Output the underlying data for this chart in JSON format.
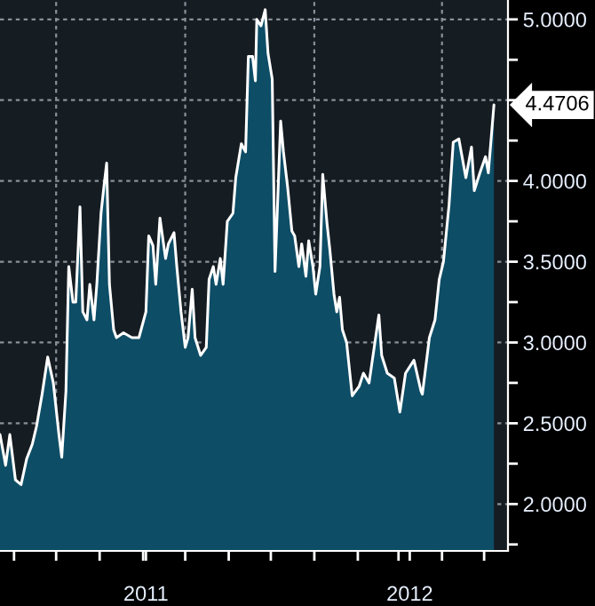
{
  "chart_data": {
    "type": "area",
    "x": [
      "2011-05-22",
      "2011-05-26",
      "2011-05-29",
      "2011-06-02",
      "2011-06-06",
      "2011-06-10",
      "2011-06-14",
      "2011-06-17",
      "2011-06-21",
      "2011-06-25",
      "2011-06-29",
      "2011-07-03",
      "2011-07-05",
      "2011-07-08",
      "2011-07-10",
      "2011-07-13",
      "2011-07-15",
      "2011-07-18",
      "2011-07-20",
      "2011-07-23",
      "2011-07-25",
      "2011-07-28",
      "2011-07-30",
      "2011-08-02",
      "2011-08-04",
      "2011-08-06",
      "2011-08-08",
      "2011-08-11",
      "2011-08-13",
      "2011-08-18",
      "2011-08-24",
      "2011-08-29",
      "2011-09-03",
      "2011-09-05",
      "2011-09-08",
      "2011-09-10",
      "2011-09-13",
      "2011-09-17",
      "2011-09-19",
      "2011-09-23",
      "2011-09-25",
      "2011-09-28",
      "2011-10-01",
      "2011-10-03",
      "2011-10-06",
      "2011-10-08",
      "2011-10-12",
      "2011-10-16",
      "2011-10-18",
      "2011-10-21",
      "2011-10-23",
      "2011-10-26",
      "2011-10-28",
      "2011-10-31",
      "2011-11-04",
      "2011-11-06",
      "2011-11-10",
      "2011-11-13",
      "2011-11-15",
      "2011-11-18",
      "2011-11-20",
      "2011-11-21",
      "2011-11-24",
      "2011-11-27",
      "2011-11-29",
      "2011-12-02",
      "2011-12-04",
      "2011-12-08",
      "2011-12-10",
      "2011-12-13",
      "2011-12-16",
      "2011-12-18",
      "2011-12-21",
      "2011-12-23",
      "2011-12-26",
      "2011-12-28",
      "2011-12-31",
      "2012-01-02",
      "2012-01-05",
      "2012-01-07",
      "2012-01-10",
      "2012-01-12",
      "2012-01-15",
      "2012-01-17",
      "2012-01-19",
      "2012-01-21",
      "2012-01-24",
      "2012-01-28",
      "2012-02-02",
      "2012-02-05",
      "2012-02-09",
      "2012-02-16",
      "2012-02-18",
      "2012-02-22",
      "2012-02-27",
      "2012-03-02",
      "2012-03-06",
      "2012-03-12",
      "2012-03-17",
      "2012-03-18",
      "2012-03-23",
      "2012-03-27",
      "2012-03-30",
      "2012-04-02",
      "2012-04-06",
      "2012-04-09",
      "2012-04-13",
      "2012-04-18",
      "2012-04-22",
      "2012-04-24",
      "2012-04-28",
      "2012-05-02",
      "2012-05-04",
      "2012-05-08"
    ],
    "series": [
      {
        "color": "#0e4d66",
        "values": [
          2.43,
          2.24,
          2.43,
          2.15,
          2.12,
          2.28,
          2.37,
          2.48,
          2.68,
          2.91,
          2.75,
          2.43,
          2.29,
          2.7,
          3.47,
          3.25,
          3.25,
          3.84,
          3.19,
          3.14,
          3.36,
          3.14,
          3.36,
          3.8,
          3.96,
          4.11,
          3.36,
          3.08,
          3.03,
          3.06,
          3.03,
          3.03,
          3.19,
          3.66,
          3.6,
          3.36,
          3.77,
          3.52,
          3.61,
          3.68,
          3.47,
          3.19,
          2.97,
          3.03,
          3.33,
          3.03,
          2.92,
          2.97,
          3.39,
          3.47,
          3.36,
          3.52,
          3.36,
          3.75,
          3.8,
          4.02,
          4.23,
          4.18,
          4.77,
          4.77,
          4.62,
          5.0,
          4.96,
          5.06,
          4.79,
          4.63,
          3.44,
          4.37,
          4.18,
          3.96,
          3.69,
          3.66,
          3.47,
          3.61,
          3.41,
          3.63,
          3.47,
          3.3,
          3.47,
          4.04,
          3.74,
          3.58,
          3.3,
          3.19,
          3.28,
          3.08,
          3.0,
          2.67,
          2.73,
          2.81,
          2.75,
          3.17,
          2.92,
          2.81,
          2.78,
          2.57,
          2.81,
          2.89,
          2.7,
          2.68,
          3.03,
          3.14,
          3.39,
          3.5,
          3.85,
          4.24,
          4.26,
          4.02,
          4.21,
          3.94,
          4.05,
          4.15,
          4.05,
          4.4706
        ]
      }
    ],
    "xlim": [
      "2011-05-22",
      "2012-05-18"
    ],
    "xticks": [
      {
        "value": "2011-06-01",
        "label": null
      },
      {
        "value": "2011-07-01",
        "label": null
      },
      {
        "value": "2011-08-01",
        "label": null
      },
      {
        "value": "2011-09-01",
        "label": null
      },
      {
        "value": "2011-09-03",
        "label": "2011"
      },
      {
        "value": "2011-10-01",
        "label": null
      },
      {
        "value": "2011-11-01",
        "label": null
      },
      {
        "value": "2011-12-01",
        "label": null
      },
      {
        "value": "2012-01-01",
        "label": null
      },
      {
        "value": "2012-02-01",
        "label": null
      },
      {
        "value": "2012-03-01",
        "label": null
      },
      {
        "value": "2012-03-09",
        "label": "2012"
      },
      {
        "value": "2012-04-01",
        "label": null
      },
      {
        "value": "2012-05-01",
        "label": null
      }
    ],
    "ylim": [
      1.71,
      5.12
    ],
    "yticks": [
      {
        "value": 1.75,
        "label": null
      },
      {
        "value": 2,
        "label": "2.0000"
      },
      {
        "value": 2.25,
        "label": null
      },
      {
        "value": 2.5,
        "label": "2.5000"
      },
      {
        "value": 2.75,
        "label": null
      },
      {
        "value": 3,
        "label": "3.0000"
      },
      {
        "value": 3.25,
        "label": null
      },
      {
        "value": 3.5,
        "label": "3.5000"
      },
      {
        "value": 3.75,
        "label": null
      },
      {
        "value": 4,
        "label": "4.0000"
      },
      {
        "value": 4.25,
        "label": null
      },
      {
        "value": 4.5,
        "label": null
      },
      {
        "value": 4.75,
        "label": null
      },
      {
        "value": 5,
        "label": "5.0000"
      }
    ],
    "grid": "y",
    "ref_lines": [
      {
        "axis": "x",
        "value": "2011-07-01",
        "color": "#8a9099",
        "line_style": "dotted"
      },
      {
        "axis": "x",
        "value": "2011-10-01",
        "color": "#8a9099",
        "line_style": "dotted"
      },
      {
        "axis": "x",
        "value": "2012-01-01",
        "color": "#8a9099",
        "line_style": "dotted"
      },
      {
        "axis": "x",
        "value": "2012-04-01",
        "color": "#8a9099",
        "line_style": "dotted"
      }
    ],
    "annotations": [
      {
        "text": "4.4706",
        "x": "2012-05-08",
        "y": 4.4706
      }
    ]
  }
}
